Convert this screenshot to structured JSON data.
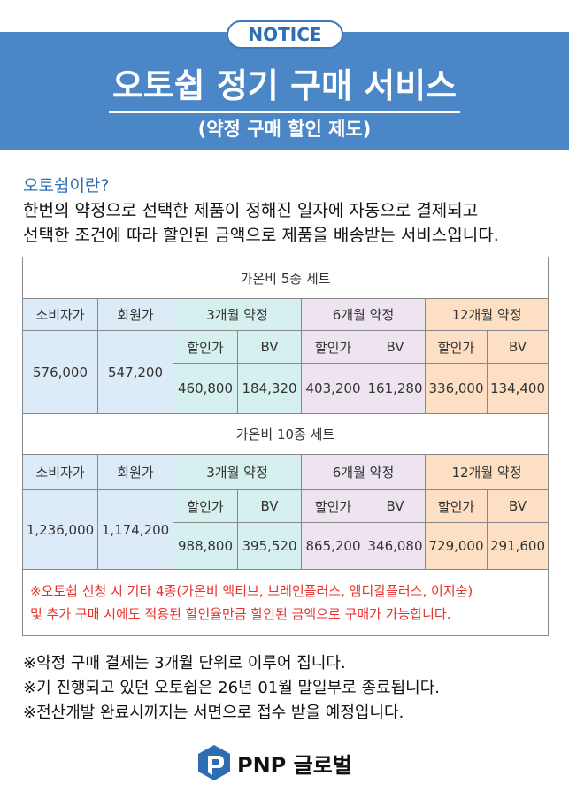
{
  "header": {
    "badge": "NOTICE",
    "title": "오토쉽 정기 구매 서비스",
    "subtitle": "(약정 구매 할인 제도)"
  },
  "intro": {
    "heading": "오토쉽이란?",
    "lines": [
      "한번의 약정으로 선택한 제품이 정해진 일자에 자동으로 결제되고",
      "선택한 조건에 따라 할인된 금액으로 제품을 배송받는 서비스입니다."
    ]
  },
  "tables": [
    {
      "title": "가온비 5종 세트",
      "columns": [
        "소비자가",
        "회원가",
        "3개월 약정",
        "6개월 약정",
        "12개월 약정"
      ],
      "subcolumns": [
        "할인가",
        "BV",
        "할인가",
        "BV",
        "할인가",
        "BV"
      ],
      "values": [
        "576,000",
        "547,200",
        "460,800",
        "184,320",
        "403,200",
        "161,280",
        "336,000",
        "134,400"
      ]
    },
    {
      "title": "가온비 10종 세트",
      "columns": [
        "소비자가",
        "회원가",
        "3개월 약정",
        "6개월 약정",
        "12개월 약정"
      ],
      "subcolumns": [
        "할인가",
        "BV",
        "할인가",
        "BV",
        "할인가",
        "BV"
      ],
      "values": [
        "1,236,000",
        "1,174,200",
        "988,800",
        "395,520",
        "865,200",
        "346,080",
        "729,000",
        "291,600"
      ]
    }
  ],
  "table_note": [
    "※오토쉽 신청 시 기타 4종(가온비 액티브, 브레인플러스, 엠디칼플러스, 이지숨)",
    "및 추가 구매 시에도 적용된 할인율만큼 할인된 금액으로 구매가 가능합니다."
  ],
  "notes": [
    "※약정 구매 결제는 3개월 단위로 이루어 집니다.",
    "※기 진행되고 있던 오토쉽은 26년 01월 말일부로 종료됩니다.",
    "※전산개발 완료시까지는 서면으로 접수 받을 예정입니다."
  ],
  "footer": {
    "brand": "PNP 글로벌"
  }
}
